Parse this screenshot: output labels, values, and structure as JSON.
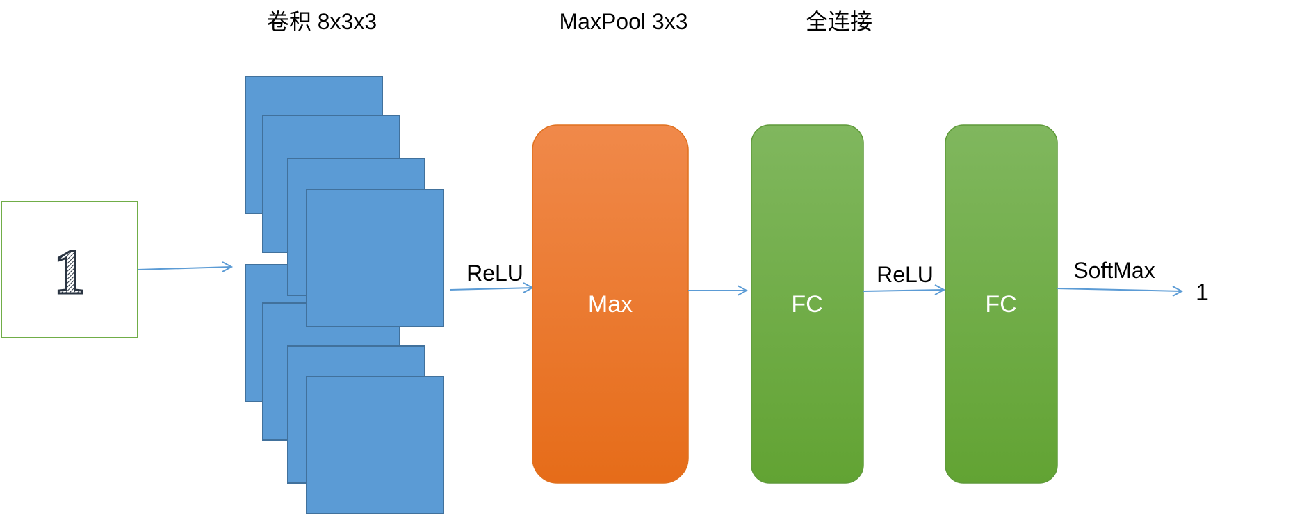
{
  "headers": {
    "conv": "卷积 8x3x3",
    "pool": "MaxPool 3x3",
    "fc": "全连接"
  },
  "input": {
    "digit": "1"
  },
  "edges": {
    "relu_1": "ReLU",
    "relu_2": "ReLU",
    "softmax": "SoftMax"
  },
  "blocks": {
    "max": "Max",
    "fc_1": "FC",
    "fc_2": "FC"
  },
  "output": {
    "value": "1"
  },
  "colors": {
    "conv_fill": "#5b9bd5",
    "conv_stroke": "#41719c",
    "input_border": "#70ad47",
    "arrow": "#5b9bd5",
    "max_top": "#f0894a",
    "max_bottom": "#e66c19",
    "fc_top": "#80b75e",
    "fc_bottom": "#62a333"
  }
}
